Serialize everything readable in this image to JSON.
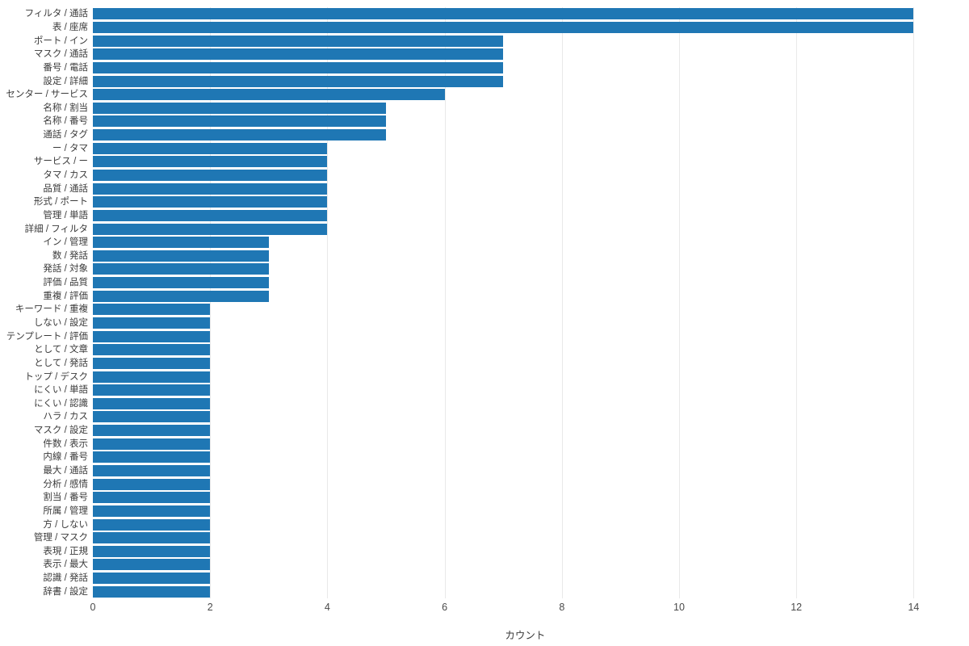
{
  "chart_data": {
    "type": "bar",
    "orientation": "horizontal",
    "title": "",
    "xlabel": "カウント",
    "ylabel": "",
    "categories": [
      "フィルタ / 通話",
      "表 / 座席",
      "ポート / イン",
      "マスク / 通話",
      "番号 / 電話",
      "設定 / 詳細",
      "センター / サービス",
      "名称 / 割当",
      "名称 / 番号",
      "通話 / タグ",
      "ー / タマ",
      "サービス / ー",
      "タマ / カス",
      "品質 / 通話",
      "形式 / ポート",
      "管理 / 単語",
      "詳細 / フィルタ",
      "イン / 管理",
      "数 / 発話",
      "発話 / 対象",
      "評価 / 品質",
      "重複 / 評価",
      "キーワード / 重複",
      "しない / 設定",
      "テンプレート / 評価",
      "として / 文章",
      "として / 発話",
      "トップ / デスク",
      "にくい / 単語",
      "にくい / 認識",
      "ハラ / カス",
      "マスク / 設定",
      "件数 / 表示",
      "内線 / 番号",
      "最大 / 通話",
      "分析 / 感情",
      "割当 / 番号",
      "所属 / 管理",
      "方 / しない",
      "管理 / マスク",
      "表現 / 正規",
      "表示 / 最大",
      "認識 / 発話",
      "辞書 / 設定"
    ],
    "values": [
      14,
      14,
      7,
      7,
      7,
      7,
      6,
      5,
      5,
      5,
      4,
      4,
      4,
      4,
      4,
      4,
      4,
      3,
      3,
      3,
      3,
      3,
      2,
      2,
      2,
      2,
      2,
      2,
      2,
      2,
      2,
      2,
      2,
      2,
      2,
      2,
      2,
      2,
      2,
      2,
      2,
      2,
      2,
      2
    ],
    "xticks": [
      0,
      2,
      4,
      6,
      8,
      10,
      12,
      14
    ],
    "xlim": [
      0,
      14.75
    ],
    "grid": "vertical",
    "legend": "none",
    "bar_color": "#1f77b4",
    "background": "#ffffff",
    "label_color": "#3b3b3b",
    "tick_color": "#4a4a4a",
    "grid_color": "#e9e9e9"
  }
}
